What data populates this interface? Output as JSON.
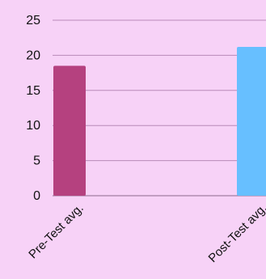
{
  "background_color": "#F7D2F7",
  "chart_data": {
    "type": "bar",
    "title": "",
    "xlabel": "",
    "ylabel": "",
    "categories": [
      "Pre-Test avg.",
      "Post-Test avg."
    ],
    "values": [
      18.5,
      21.2
    ],
    "colors": [
      "#B5417F",
      "#67BFFF"
    ],
    "ylim": [
      0,
      25
    ],
    "yticks": [
      0,
      5,
      10,
      15,
      20,
      25
    ],
    "grid": true,
    "legend": "none"
  }
}
